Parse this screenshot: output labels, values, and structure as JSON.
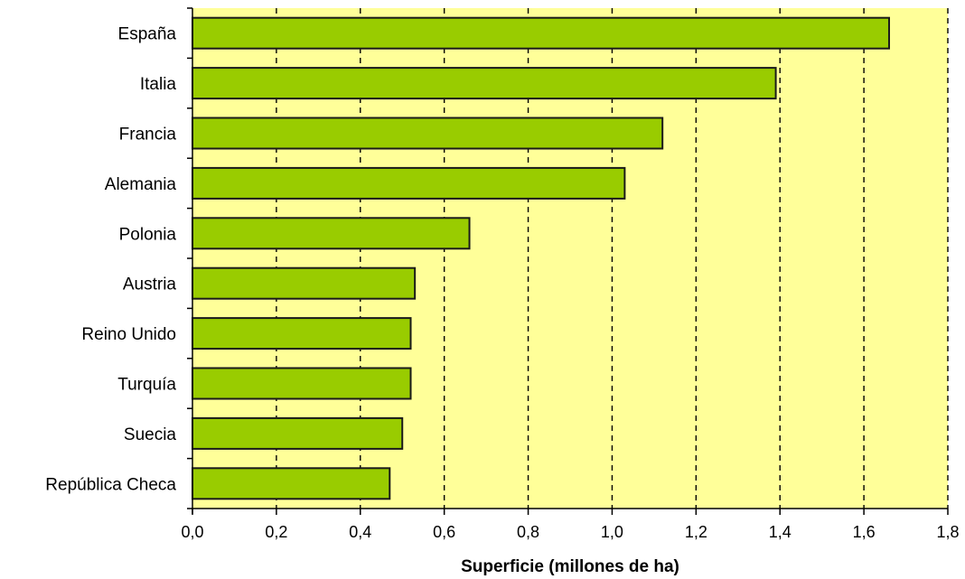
{
  "chart_data": {
    "type": "bar",
    "orientation": "horizontal",
    "categories": [
      "España",
      "Italia",
      "Francia",
      "Alemania",
      "Polonia",
      "Austria",
      "Reino Unido",
      "Turquía",
      "Suecia",
      "República Checa"
    ],
    "values": [
      1.66,
      1.39,
      1.12,
      1.03,
      0.66,
      0.53,
      0.52,
      0.52,
      0.5,
      0.47
    ],
    "xlabel": "Superficie (millones de ha)",
    "ylabel": "",
    "xlim": [
      0,
      1.8
    ],
    "x_ticks": [
      "0,0",
      "0,2",
      "0,4",
      "0,6",
      "0,8",
      "1,0",
      "1,2",
      "1,4",
      "1,6",
      "1,8"
    ],
    "grid": "vertical-dashed",
    "colors": {
      "plot_background": "#ffff99",
      "bar_fill": "#99cc00",
      "bar_stroke": "#1a1a1a",
      "grid": "#000000"
    }
  }
}
